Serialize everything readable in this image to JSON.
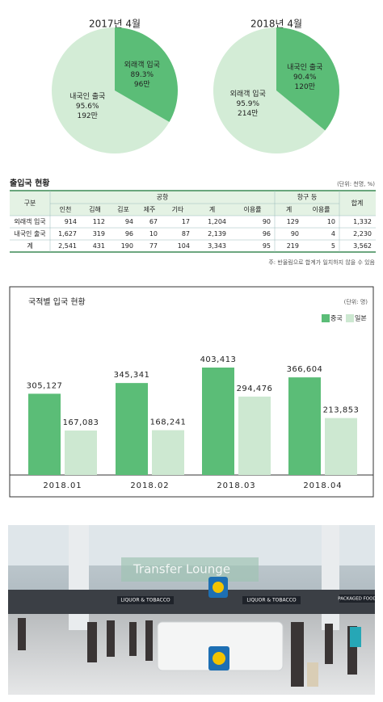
{
  "chart_data": [
    {
      "type": "pie",
      "title": "2017년 4월",
      "categories": [
        "내국인 출국",
        "외래객 입국"
      ],
      "values": [
        192,
        96
      ],
      "value_labels": [
        "192만",
        "96만"
      ],
      "rate_labels": [
        "95.6%",
        "89.3%"
      ],
      "colors": [
        "#d3ecd6",
        "#5bbd77"
      ]
    },
    {
      "type": "pie",
      "title": "2018년 4월",
      "categories": [
        "외래객 입국",
        "내국인 출국"
      ],
      "values": [
        214,
        120
      ],
      "value_labels": [
        "214만",
        "120만"
      ],
      "rate_labels": [
        "95.9%",
        "90.4%"
      ],
      "colors": [
        "#d3ecd6",
        "#5bbd77"
      ]
    },
    {
      "type": "bar",
      "title": "국적별 입국 현황",
      "unit": "(단위: 명)",
      "categories": [
        "2018.01",
        "2018.02",
        "2018.03",
        "2018.04"
      ],
      "series": [
        {
          "name": "중국",
          "color": "#5bbd77",
          "values": [
            305127,
            345341,
            403413,
            366604
          ],
          "value_labels": [
            "305,127",
            "345,341",
            "403,413",
            "366,604"
          ]
        },
        {
          "name": "일본",
          "color": "#cde8d1",
          "values": [
            167083,
            168241,
            294476,
            213853
          ],
          "value_labels": [
            "167,083",
            "168,241",
            "294,476",
            "213,853"
          ]
        }
      ]
    }
  ],
  "table": {
    "title": "출입국 현황",
    "unit": "(단위: 천명, %)",
    "group_headers": [
      "구분",
      "공항",
      "항구 등",
      "합계"
    ],
    "sub_headers": [
      "인천",
      "김해",
      "김포",
      "제주",
      "기타",
      "계",
      "이용률",
      "계",
      "이용률"
    ],
    "rows": [
      [
        "외래객 입국",
        "914",
        "112",
        "94",
        "67",
        "17",
        "1,204",
        "90",
        "129",
        "10",
        "1,332"
      ],
      [
        "내국인 출국",
        "1,627",
        "319",
        "96",
        "10",
        "87",
        "2,139",
        "96",
        "90",
        "4",
        "2,230"
      ],
      [
        "계",
        "2,541",
        "431",
        "190",
        "77",
        "104",
        "3,343",
        "95",
        "219",
        "5",
        "3,562"
      ]
    ],
    "note": "주: 반올림으로 합계가 일치하지 않을 수 있음"
  },
  "photo": {
    "signs": [
      "Transfer Lounge",
      "LIQUOR & TOBACCO",
      "LIQUOR & TOBACCO",
      "PACKAGED FOOD"
    ]
  }
}
